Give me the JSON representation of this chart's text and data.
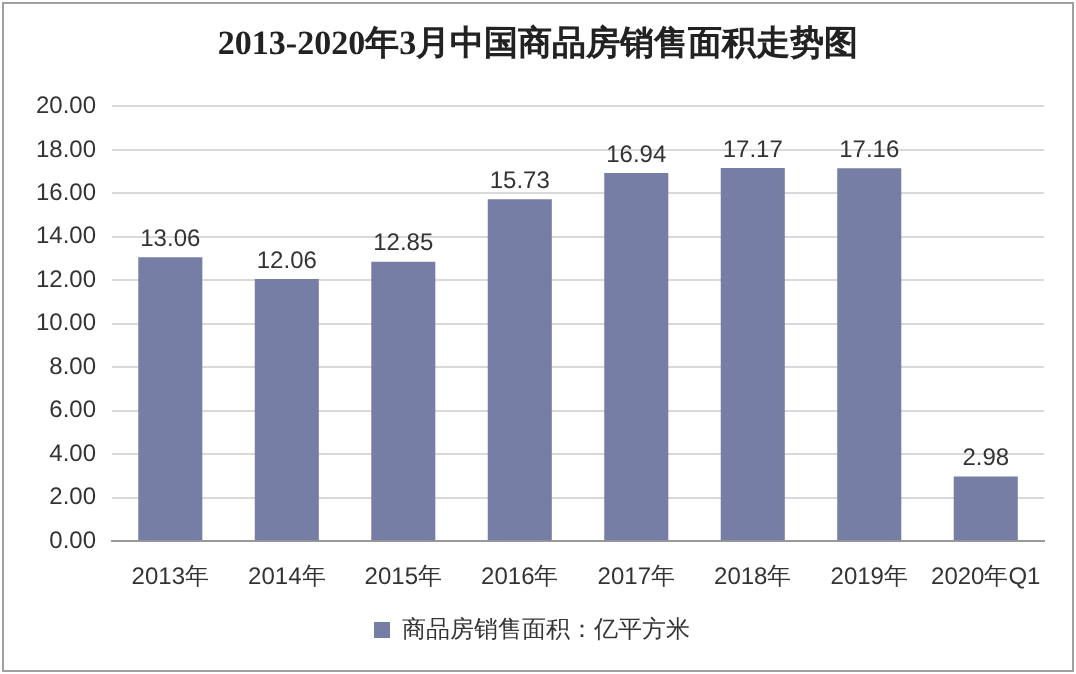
{
  "chart_data": {
    "type": "bar",
    "title": "2013-2020年3月中国商品房销售面积走势图",
    "categories": [
      "2013年",
      "2014年",
      "2015年",
      "2016年",
      "2017年",
      "2018年",
      "2019年",
      "2020年Q1"
    ],
    "series": [
      {
        "name": "商品房销售面积：亿平方米",
        "color": "#777ea5",
        "values": [
          13.06,
          12.06,
          12.85,
          15.73,
          16.94,
          17.17,
          17.16,
          2.98
        ]
      }
    ],
    "ylim": [
      0,
      20
    ],
    "yticks": [
      {
        "value": 0,
        "label": "0.00"
      },
      {
        "value": 2,
        "label": "2.00"
      },
      {
        "value": 4,
        "label": "4.00"
      },
      {
        "value": 6,
        "label": "6.00"
      },
      {
        "value": 8,
        "label": "8.00"
      },
      {
        "value": 10,
        "label": "10.00"
      },
      {
        "value": 12,
        "label": "12.00"
      },
      {
        "value": 14,
        "label": "14.00"
      },
      {
        "value": 16,
        "label": "16.00"
      },
      {
        "value": 18,
        "label": "18.00"
      },
      {
        "value": 20,
        "label": "20.00"
      }
    ],
    "grid": "y",
    "legend": "bottom",
    "data_labels": true
  }
}
